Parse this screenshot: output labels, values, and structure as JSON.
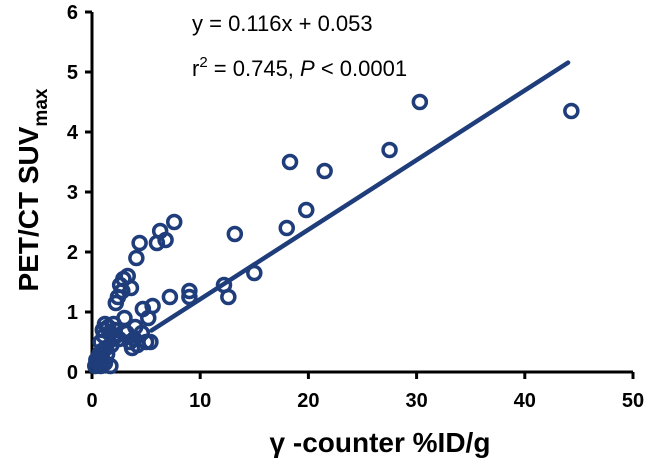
{
  "chart_data": {
    "type": "scatter",
    "xlabel": "γ -counter  %ID/g",
    "ylabel": "PET/CT  SUV",
    "ylabel_sub": "max",
    "xlim": [
      0,
      50
    ],
    "ylim": [
      0,
      6
    ],
    "xticks": [
      "0",
      "10",
      "20",
      "30",
      "40",
      "50"
    ],
    "yticks": [
      "0",
      "1",
      "2",
      "3",
      "4",
      "5",
      "6"
    ],
    "grid": false,
    "marker_color": "#1f3d7a",
    "line_color": "#1f3d7a",
    "regression": {
      "slope": 0.116,
      "intercept": 0.053,
      "x_start": 5.5,
      "x_end": 44
    },
    "annotations": {
      "equation": "y = 0.116x + 0.053",
      "r_prefix": "r",
      "r_exp": "2",
      "r_rest": " = 0.745, ",
      "p_symbol": "P",
      "p_rest": " < 0.0001"
    },
    "points": [
      [
        0.3,
        0.1
      ],
      [
        0.4,
        0.2
      ],
      [
        0.5,
        0.15
      ],
      [
        0.6,
        0.25
      ],
      [
        0.7,
        0.3
      ],
      [
        0.8,
        0.1
      ],
      [
        0.8,
        0.5
      ],
      [
        0.9,
        0.35
      ],
      [
        1.0,
        0.2
      ],
      [
        1.0,
        0.7
      ],
      [
        1.1,
        0.6
      ],
      [
        1.2,
        0.8
      ],
      [
        1.2,
        0.15
      ],
      [
        1.3,
        0.4
      ],
      [
        1.4,
        0.3
      ],
      [
        1.5,
        0.75
      ],
      [
        1.6,
        0.65
      ],
      [
        1.7,
        0.1
      ],
      [
        1.8,
        0.45
      ],
      [
        1.9,
        0.55
      ],
      [
        2.0,
        0.8
      ],
      [
        2.1,
        0.7
      ],
      [
        2.2,
        0.6
      ],
      [
        2.2,
        1.15
      ],
      [
        2.4,
        1.25
      ],
      [
        2.5,
        0.55
      ],
      [
        2.6,
        1.45
      ],
      [
        2.8,
        1.35
      ],
      [
        2.9,
        1.55
      ],
      [
        3.0,
        0.9
      ],
      [
        3.2,
        0.65
      ],
      [
        3.3,
        1.6
      ],
      [
        3.5,
        0.5
      ],
      [
        3.6,
        1.4
      ],
      [
        3.7,
        0.4
      ],
      [
        3.9,
        0.55
      ],
      [
        4.0,
        0.75
      ],
      [
        4.1,
        1.9
      ],
      [
        4.2,
        0.45
      ],
      [
        4.4,
        2.15
      ],
      [
        4.6,
        0.65
      ],
      [
        4.7,
        1.05
      ],
      [
        5.0,
        0.5
      ],
      [
        5.2,
        0.9
      ],
      [
        5.4,
        0.5
      ],
      [
        5.6,
        1.1
      ],
      [
        6.0,
        2.15
      ],
      [
        6.3,
        2.35
      ],
      [
        6.8,
        2.2
      ],
      [
        7.2,
        1.25
      ],
      [
        7.6,
        2.5
      ],
      [
        9.0,
        1.35
      ],
      [
        9.0,
        1.25
      ],
      [
        12.2,
        1.45
      ],
      [
        12.6,
        1.25
      ],
      [
        13.2,
        2.3
      ],
      [
        15.0,
        1.65
      ],
      [
        18.0,
        2.4
      ],
      [
        18.3,
        3.5
      ],
      [
        19.8,
        2.7
      ],
      [
        21.5,
        3.35
      ],
      [
        27.5,
        3.7
      ],
      [
        30.3,
        4.5
      ],
      [
        44.3,
        4.35
      ]
    ]
  }
}
